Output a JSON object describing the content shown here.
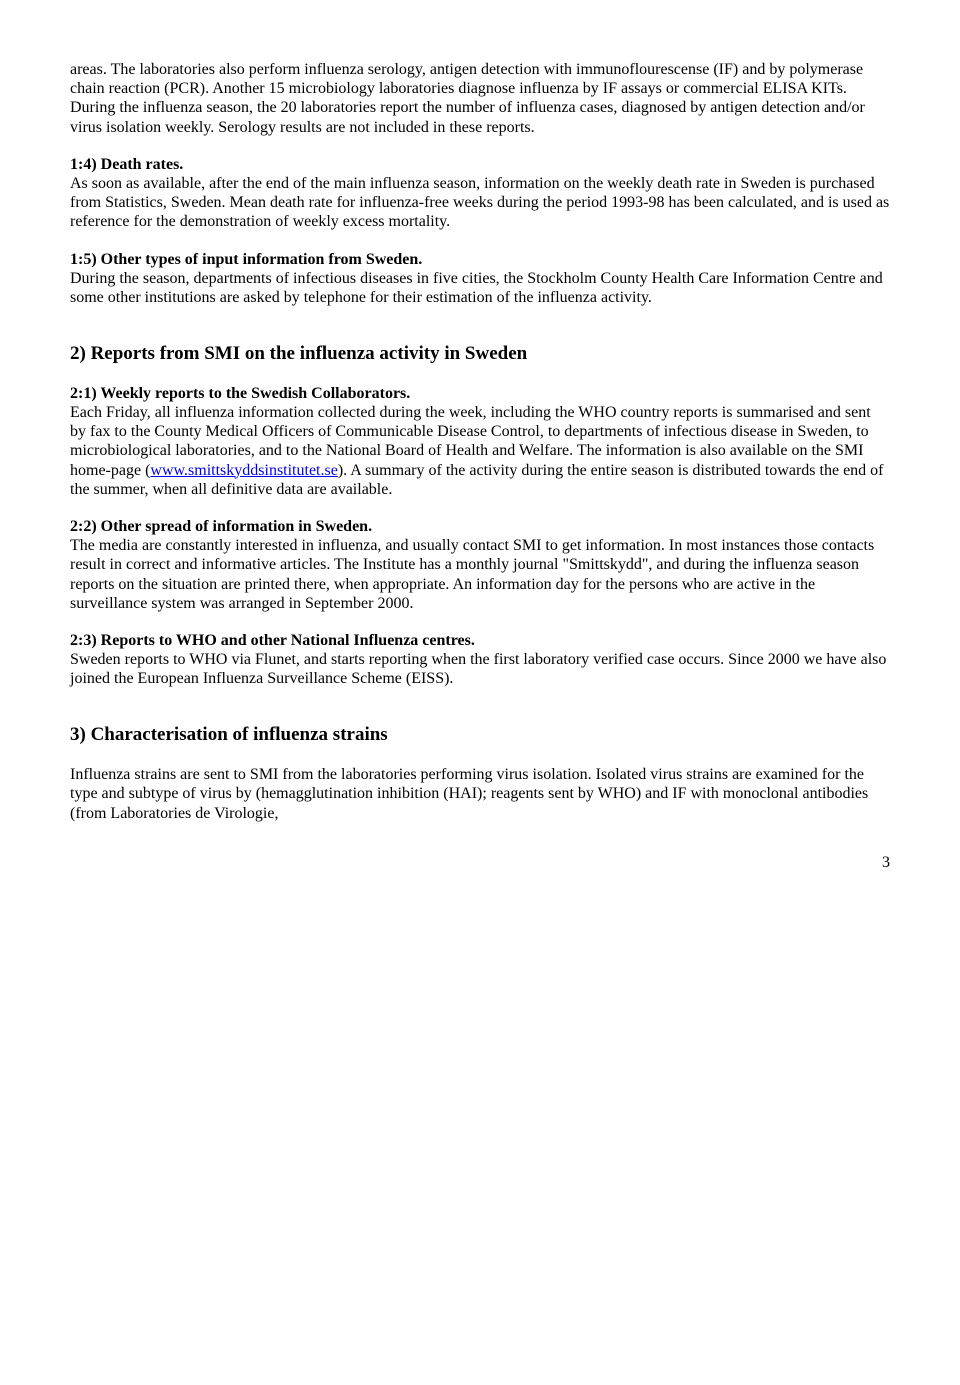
{
  "p1": "areas. The laboratories also perform influenza serology, antigen detection with immunoflourescense (IF) and by polymerase chain reaction (PCR). Another 15 microbiology laboratories diagnose influenza by IF assays or commercial ELISA KITs. During the influenza season, the 20 laboratories report the number of influenza cases, diagnosed by antigen detection and/or virus isolation weekly. Serology results are not included in these reports.",
  "s14_title": "1:4) Death rates.",
  "s14_body": "As soon as available, after the end of the main influenza season, information on the weekly death rate in Sweden is purchased from Statistics, Sweden. Mean death rate for influenza-free weeks during the period 1993-98 has been calculated, and is used as reference for the demonstration of weekly excess mortality.",
  "s15_title": "1:5) Other types of input information from Sweden.",
  "s15_body": "During the season, departments of infectious diseases in five cities, the Stockholm County Health Care Information Centre and some other institutions are asked by telephone for their estimation of the influenza activity.",
  "h2": "2)  Reports from SMI on the influenza activity in Sweden",
  "s21_title": "2:1) Weekly reports to the Swedish Collaborators.",
  "s21_body_a": "Each Friday, all influenza information collected during the week, including the WHO country reports is summarised and sent by fax to the County Medical Officers of Communicable Disease Control, to departments of infectious disease in Sweden, to microbiological laboratories, and to the National Board of Health and Welfare. The information is also available on the SMI home-page (",
  "s21_link": "www.smittskyddsinstitutet.se",
  "s21_body_b": "). A summary of the activity during the entire season is distributed towards the end of the summer, when all definitive data are available.",
  "s22_title": "2:2) Other spread of information in Sweden.",
  "s22_body": "The media are constantly interested in influenza, and usually contact SMI to get information. In most instances those contacts result in correct and informative articles. The Institute has a monthly journal \"Smittskydd\", and during the influenza season reports on the situation are printed there, when appropriate. An information day for the persons who are active in the surveillance system was arranged in September 2000.",
  "s23_title": "2:3) Reports to WHO and other National Influenza centres.",
  "s23_body": "Sweden reports to WHO via Flunet, and starts reporting when the first laboratory verified case occurs. Since 2000 we have also joined the European Influenza Surveillance Scheme (EISS).",
  "h3": "3)  Characterisation of influenza strains",
  "s3_body": "Influenza strains are sent to SMI from the laboratories performing virus isolation. Isolated virus strains are examined for the type and subtype of virus by (hemagglutination inhibition (HAI); reagents sent by WHO) and IF with monoclonal antibodies (from Laboratories de Virologie,",
  "page_number": "3"
}
